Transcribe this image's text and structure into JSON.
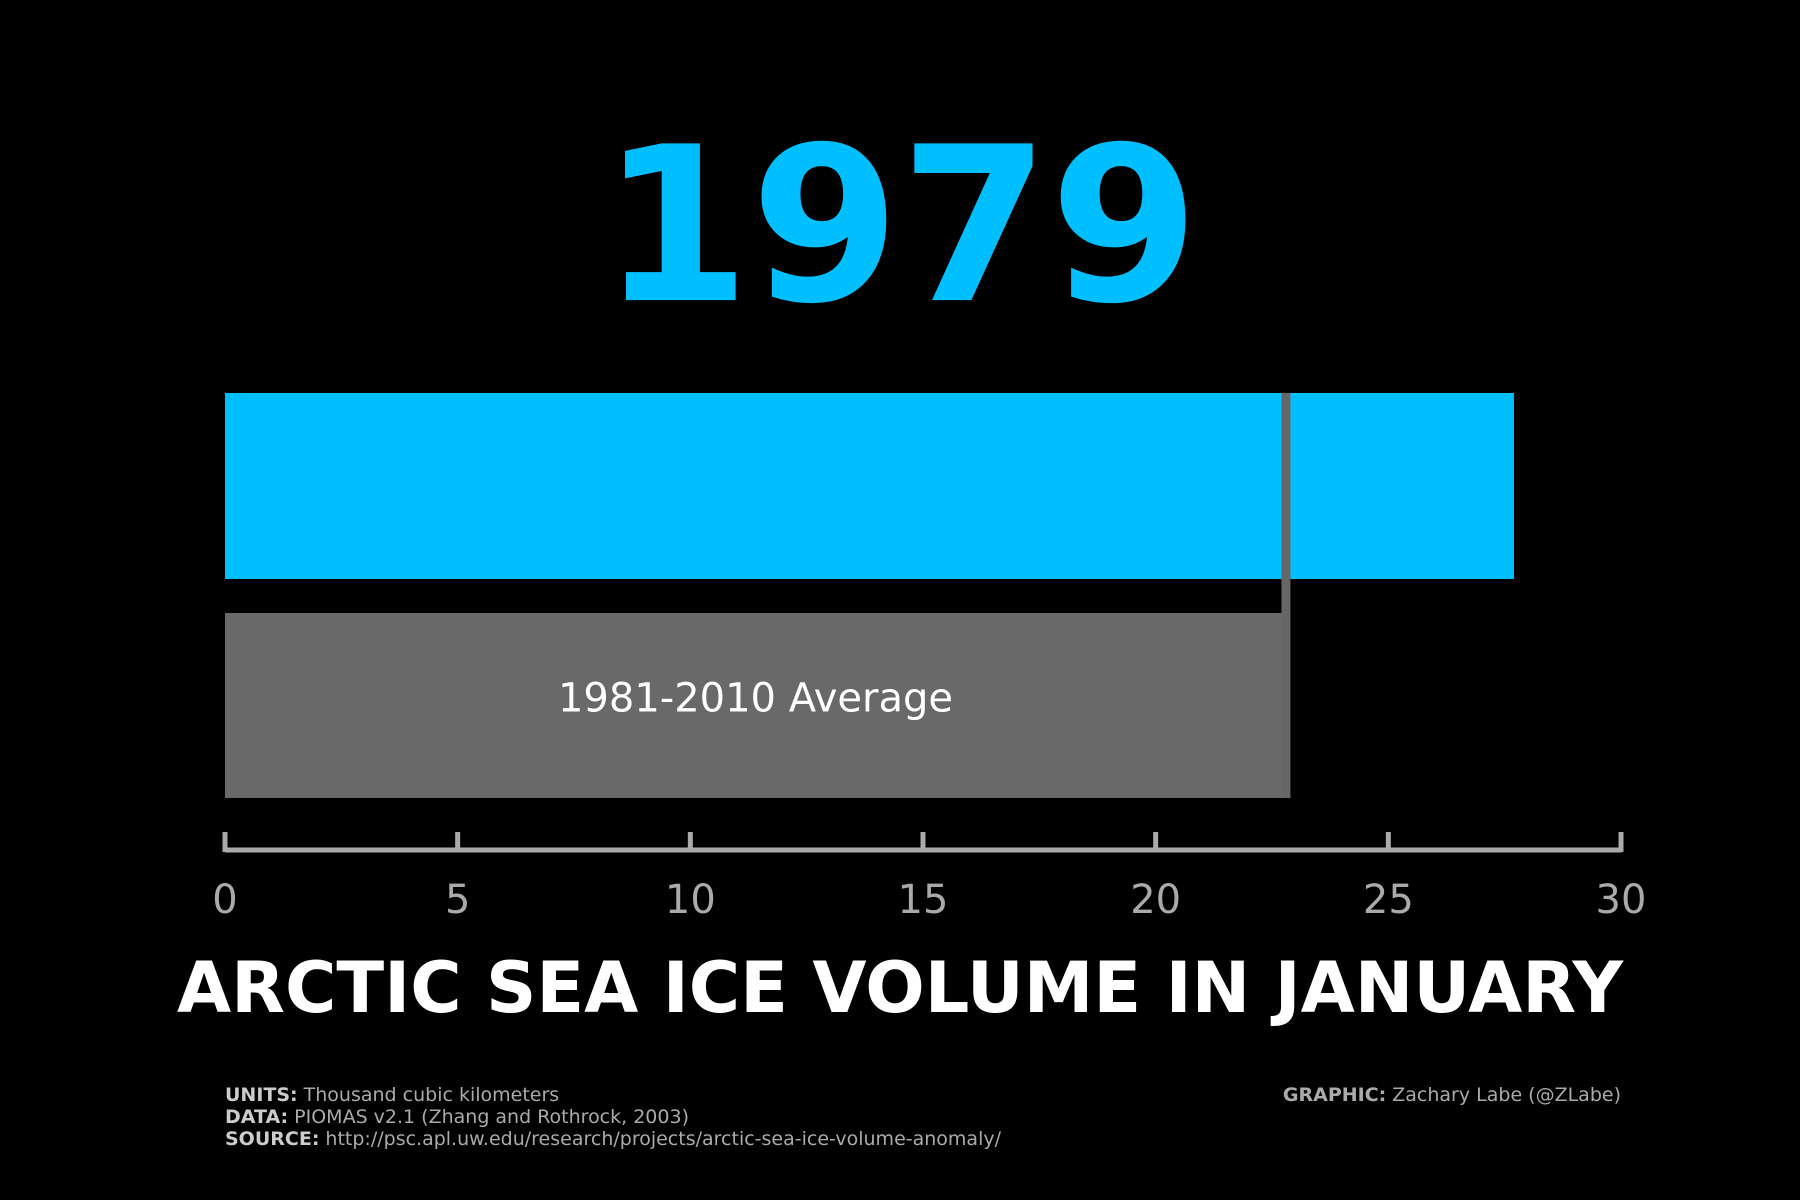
{
  "chart_data": {
    "type": "hbar",
    "categories": [
      "1979",
      "1981-2010 Average"
    ],
    "values": [
      27.7,
      22.8
    ],
    "colors": [
      "#00bfff",
      "#696969"
    ],
    "reference_line": {
      "value": 22.8,
      "color": "#666666"
    },
    "xlim": [
      0,
      30
    ],
    "xticks": [
      0,
      5,
      10,
      15,
      20,
      25,
      30
    ],
    "xlabel": "ARCTIC SEA ICE VOLUME IN JANUARY",
    "footnotes": [
      {
        "label": "UNITS:",
        "text": "Thousand cubic kilometers"
      },
      {
        "label": "DATA:",
        "text": "PIOMAS v2.1 (Zhang and Rothrock, 2003)"
      },
      {
        "label": "SOURCE:",
        "text": "http://psc.apl.uw.edu/research/projects/arctic-sea-ice-volume-anomaly/"
      }
    ],
    "credit": {
      "label": "GRAPHIC:",
      "text": "Zachary Labe (@ZLabe)"
    }
  }
}
